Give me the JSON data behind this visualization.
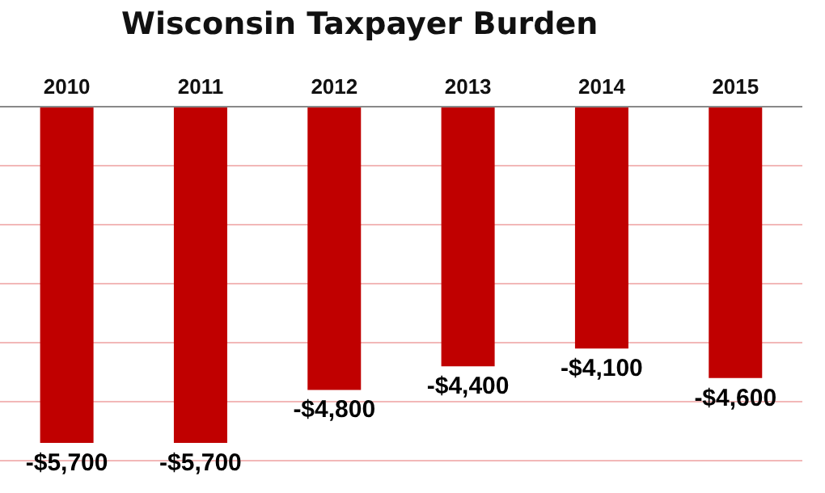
{
  "chart_data": {
    "type": "bar",
    "title": "Wisconsin Taxpayer Burden",
    "categories": [
      "2010",
      "2011",
      "2012",
      "2013",
      "2014",
      "2015"
    ],
    "values": [
      -5700,
      -5700,
      -4800,
      -4400,
      -4100,
      -4600
    ],
    "value_labels": [
      "-$5,700",
      "-$5,700",
      "-$4,800",
      "-$4,400",
      "-$4,100",
      "-$4,600"
    ],
    "color": "#c00000",
    "ylim": [
      -6000,
      0
    ],
    "yticks": [
      {
        "value": -6000,
        "label": null
      },
      {
        "value": -5000,
        "label": null
      },
      {
        "value": -4000,
        "label": null
      },
      {
        "value": -3000,
        "label": null
      },
      {
        "value": -2000,
        "label": null
      },
      {
        "value": -1000,
        "label": null
      },
      {
        "value": 0,
        "label": null
      }
    ],
    "grid": "y",
    "tick_labels": "x"
  }
}
